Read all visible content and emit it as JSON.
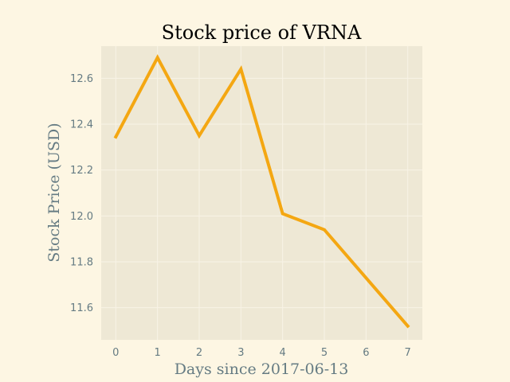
{
  "chart_data": {
    "type": "line",
    "title": "Stock price of VRNA",
    "xlabel": "Days since 2017-06-13",
    "ylabel": "Stock Price (USD)",
    "x": [
      0,
      1,
      2,
      3,
      4,
      5,
      6,
      7
    ],
    "series": [
      {
        "values": [
          12.345,
          12.69,
          12.35,
          12.64,
          12.01,
          11.94,
          11.73,
          11.52
        ]
      }
    ],
    "xlim": [
      -0.35,
      7.35
    ],
    "ylim": [
      11.46,
      12.74
    ],
    "xticks": [
      0,
      1,
      2,
      3,
      4,
      5,
      6,
      7
    ],
    "yticks": [
      "11.6",
      "11.8",
      "12.0",
      "12.2",
      "12.4",
      "12.6"
    ],
    "grid": true,
    "colors": {
      "figure_background": "#fdf6e3",
      "plot_background": "#eee8d5",
      "grid": "#f8f3e6",
      "line": "#f4a712",
      "text": "#657b83",
      "title": "#000000"
    }
  }
}
